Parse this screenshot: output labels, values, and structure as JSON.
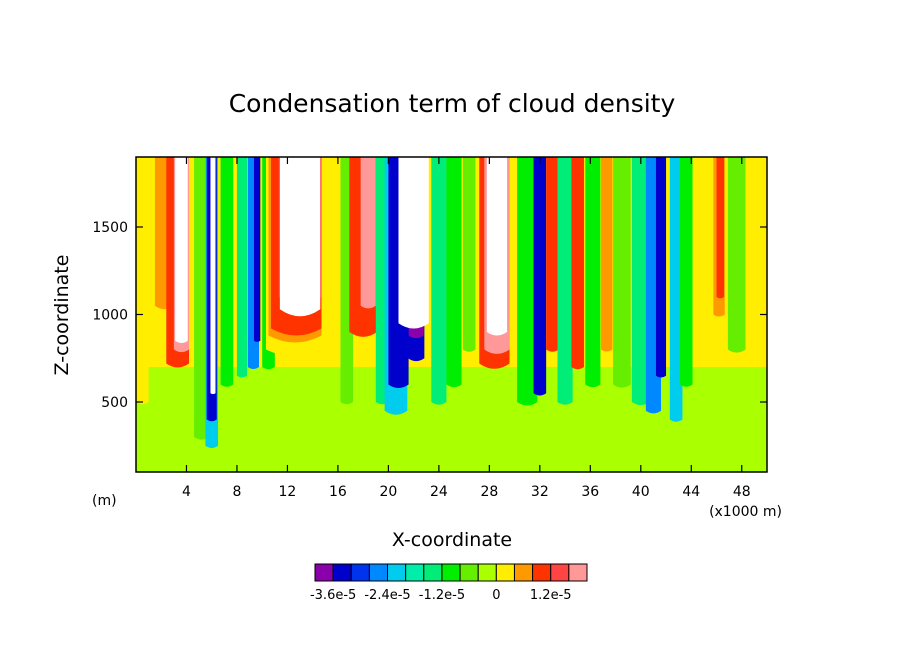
{
  "chart_data": {
    "type": "heatmap",
    "title": "Condensation term of cloud density",
    "xlabel": "X-coordinate",
    "ylabel": "Z-coordinate",
    "x_unit_left": "(m)",
    "x_unit_right": "(x1000 m)",
    "xlim": [
      0,
      50
    ],
    "ylim": [
      100,
      1900
    ],
    "x_ticks": [
      4,
      8,
      12,
      16,
      20,
      24,
      28,
      32,
      36,
      40,
      44,
      48
    ],
    "y_ticks": [
      500,
      1000,
      1500
    ],
    "colorbar": {
      "colors": [
        "#8a00aa",
        "#0000cc",
        "#0033ee",
        "#0088ff",
        "#00ccee",
        "#00eeaa",
        "#00ee77",
        "#00ee00",
        "#66ee00",
        "#aaff00",
        "#ffee00",
        "#ff9900",
        "#ff3300",
        "#ff4444",
        "#ff9999"
      ],
      "labels": [
        "-3.6e-5",
        "-2.4e-5",
        "-1.2e-5",
        "0",
        "1.2e-5"
      ],
      "label_positions": [
        0,
        3,
        6,
        9,
        12
      ]
    },
    "base_field": [
      {
        "z_from": 100,
        "z_to": 700,
        "color": "#aaff00"
      },
      {
        "z_from": 700,
        "z_to": 1900,
        "color": "#ffee00"
      }
    ],
    "plumes": [
      {
        "x": 0.5,
        "w": 1.0,
        "z0": 500,
        "color": "#ffee00"
      },
      {
        "x": 2.3,
        "w": 1.6,
        "z0": 1050,
        "color": "#ff9900"
      },
      {
        "x": 3.3,
        "w": 1.8,
        "z0": 720,
        "color": "#ff3300"
      },
      {
        "x": 3.6,
        "w": 1.2,
        "z0": 800,
        "color": "#ff9999"
      },
      {
        "x": 3.6,
        "w": 1.0,
        "z0": 850,
        "color": "#ffffff"
      },
      {
        "x": 5.2,
        "w": 1.2,
        "z0": 300,
        "color": "#66ee00"
      },
      {
        "x": 6.0,
        "w": 1.0,
        "z0": 250,
        "color": "#00ccee"
      },
      {
        "x": 6.0,
        "w": 0.8,
        "z0": 400,
        "color": "#0000cc"
      },
      {
        "x": 6.1,
        "w": 0.4,
        "z0": 550,
        "color": "#ffffff"
      },
      {
        "x": 7.2,
        "w": 1.0,
        "z0": 600,
        "color": "#00ee00"
      },
      {
        "x": 8.4,
        "w": 0.8,
        "z0": 650,
        "color": "#00ee77"
      },
      {
        "x": 9.3,
        "w": 0.9,
        "z0": 700,
        "color": "#0088ff"
      },
      {
        "x": 9.6,
        "w": 0.5,
        "z0": 850,
        "color": "#0000cc"
      },
      {
        "x": 10.5,
        "w": 1.0,
        "z0": 700,
        "color": "#00ee00"
      },
      {
        "x": 12.6,
        "w": 4.6,
        "z0": 800,
        "color": "#ffee00"
      },
      {
        "x": 12.6,
        "w": 4.2,
        "z0": 880,
        "color": "#ff9900"
      },
      {
        "x": 12.7,
        "w": 4.0,
        "z0": 920,
        "color": "#ff3300"
      },
      {
        "x": 13.0,
        "w": 3.4,
        "z0": 1100,
        "color": "#ff4444"
      },
      {
        "x": 13.0,
        "w": 3.2,
        "z0": 1030,
        "color": "#ffffff"
      },
      {
        "x": 16.7,
        "w": 1.0,
        "z0": 500,
        "color": "#66ee00"
      },
      {
        "x": 18.0,
        "w": 2.2,
        "z0": 900,
        "color": "#ff3300"
      },
      {
        "x": 18.4,
        "w": 1.2,
        "z0": 1050,
        "color": "#ff9999"
      },
      {
        "x": 19.5,
        "w": 1.0,
        "z0": 500,
        "color": "#00ee77"
      },
      {
        "x": 20.6,
        "w": 1.8,
        "z0": 450,
        "color": "#00ccee"
      },
      {
        "x": 20.8,
        "w": 1.6,
        "z0": 600,
        "color": "#0000cc"
      },
      {
        "x": 22.2,
        "w": 1.3,
        "z0": 750,
        "color": "#0000cc"
      },
      {
        "x": 22.2,
        "w": 1.2,
        "z0": 880,
        "color": "#8a00aa"
      },
      {
        "x": 22.0,
        "w": 2.4,
        "z0": 950,
        "color": "#ffffff"
      },
      {
        "x": 24.0,
        "w": 1.2,
        "z0": 500,
        "color": "#00ee77"
      },
      {
        "x": 25.2,
        "w": 1.2,
        "z0": 600,
        "color": "#00ee00"
      },
      {
        "x": 26.4,
        "w": 1.0,
        "z0": 800,
        "color": "#66ee00"
      },
      {
        "x": 28.4,
        "w": 2.4,
        "z0": 720,
        "color": "#ff3300"
      },
      {
        "x": 28.6,
        "w": 2.0,
        "z0": 800,
        "color": "#ff9999"
      },
      {
        "x": 28.6,
        "w": 1.6,
        "z0": 900,
        "color": "#ffffff"
      },
      {
        "x": 31.0,
        "w": 1.6,
        "z0": 500,
        "color": "#00ee00"
      },
      {
        "x": 32.0,
        "w": 1.0,
        "z0": 550,
        "color": "#0000cc"
      },
      {
        "x": 33.0,
        "w": 1.0,
        "z0": 800,
        "color": "#ff3300"
      },
      {
        "x": 34.0,
        "w": 1.2,
        "z0": 500,
        "color": "#00ee77"
      },
      {
        "x": 35.0,
        "w": 1.0,
        "z0": 700,
        "color": "#ff3300"
      },
      {
        "x": 36.2,
        "w": 1.2,
        "z0": 600,
        "color": "#00ee00"
      },
      {
        "x": 37.3,
        "w": 0.9,
        "z0": 800,
        "color": "#ff9900"
      },
      {
        "x": 38.5,
        "w": 1.4,
        "z0": 600,
        "color": "#66ee00"
      },
      {
        "x": 40.0,
        "w": 1.4,
        "z0": 500,
        "color": "#00ee77"
      },
      {
        "x": 41.0,
        "w": 1.2,
        "z0": 450,
        "color": "#0088ff"
      },
      {
        "x": 41.6,
        "w": 0.8,
        "z0": 650,
        "color": "#0000cc"
      },
      {
        "x": 42.8,
        "w": 1.0,
        "z0": 400,
        "color": "#00ccee"
      },
      {
        "x": 43.6,
        "w": 1.0,
        "z0": 600,
        "color": "#00ee00"
      },
      {
        "x": 45.0,
        "w": 1.6,
        "z0": 1000,
        "color": "#ffee00"
      },
      {
        "x": 46.2,
        "w": 0.9,
        "z0": 1000,
        "color": "#ff9900"
      },
      {
        "x": 46.3,
        "w": 0.6,
        "z0": 1100,
        "color": "#ff3300"
      },
      {
        "x": 47.6,
        "w": 1.4,
        "z0": 800,
        "color": "#66ee00"
      },
      {
        "x": 49.2,
        "w": 1.2,
        "z0": 900,
        "color": "#ffee00"
      }
    ]
  }
}
